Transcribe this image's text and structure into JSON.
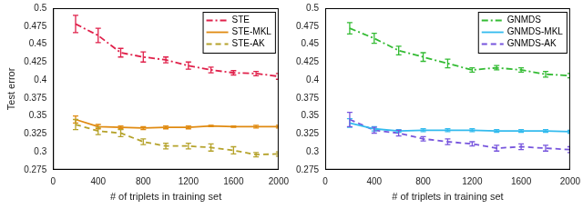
{
  "chart_data": [
    {
      "type": "line",
      "x_label": "# of triplets in training set",
      "y_label": "Test error",
      "x": [
        200,
        400,
        600,
        800,
        1000,
        1200,
        1400,
        1600,
        1800,
        2000
      ],
      "xlim": [
        0,
        2000
      ],
      "xticks": [
        0,
        400,
        800,
        1200,
        1600,
        2000
      ],
      "ylim": [
        0.275,
        0.5
      ],
      "yticks": [
        0.275,
        0.3,
        0.325,
        0.35,
        0.375,
        0.4,
        0.425,
        0.45,
        0.475,
        0.5
      ],
      "grid": false,
      "legend": "upper right",
      "series": [
        {
          "name": "STE",
          "color": "#e0204a",
          "line_style": "dashdot",
          "values": [
            0.478,
            0.462,
            0.438,
            0.432,
            0.428,
            0.42,
            0.414,
            0.41,
            0.409,
            0.405
          ],
          "errors": [
            0.012,
            0.01,
            0.006,
            0.007,
            0.004,
            0.005,
            0.004,
            0.003,
            0.003,
            0.004
          ]
        },
        {
          "name": "STE-MKL",
          "color": "#e08a10",
          "line_style": "solid",
          "values": [
            0.345,
            0.335,
            0.334,
            0.333,
            0.334,
            0.334,
            0.336,
            0.335,
            0.335,
            0.335
          ],
          "errors": [
            0.005,
            0.003,
            0.002,
            0.002,
            0.002,
            0.002,
            0.001,
            0.001,
            0.002,
            0.002
          ]
        },
        {
          "name": "STE-AK",
          "color": "#b5a22a",
          "line_style": "dashed",
          "values": [
            0.338,
            0.329,
            0.326,
            0.314,
            0.308,
            0.308,
            0.306,
            0.302,
            0.296,
            0.297
          ],
          "errors": [
            0.007,
            0.005,
            0.005,
            0.004,
            0.004,
            0.004,
            0.005,
            0.005,
            0.003,
            0.003
          ]
        }
      ]
    },
    {
      "type": "line",
      "x_label": "# of triplets in training set",
      "x": [
        200,
        400,
        600,
        800,
        1000,
        1200,
        1400,
        1600,
        1800,
        2000
      ],
      "xlim": [
        0,
        2000
      ],
      "xticks": [
        0,
        400,
        800,
        1200,
        1600,
        2000
      ],
      "ylim": [
        0.275,
        0.5
      ],
      "yticks": [
        0.275,
        0.3,
        0.325,
        0.35,
        0.375,
        0.4,
        0.425,
        0.45,
        0.475,
        0.5
      ],
      "grid": false,
      "legend": "upper right",
      "series": [
        {
          "name": "GNMDS",
          "color": "#33bb33",
          "line_style": "dashdot",
          "values": [
            0.472,
            0.458,
            0.441,
            0.432,
            0.423,
            0.414,
            0.417,
            0.414,
            0.408,
            0.406
          ],
          "errors": [
            0.008,
            0.007,
            0.006,
            0.006,
            0.006,
            0.003,
            0.003,
            0.003,
            0.004,
            0.003
          ]
        },
        {
          "name": "GNMDS-MKL",
          "color": "#33bbee",
          "line_style": "solid",
          "values": [
            0.34,
            0.332,
            0.329,
            0.33,
            0.33,
            0.33,
            0.329,
            0.329,
            0.329,
            0.328
          ],
          "errors": [
            0.006,
            0.003,
            0.002,
            0.002,
            0.002,
            0.002,
            0.002,
            0.002,
            0.002,
            0.002
          ]
        },
        {
          "name": "GNMDS-AK",
          "color": "#7755dd",
          "line_style": "dashed",
          "values": [
            0.345,
            0.33,
            0.326,
            0.318,
            0.314,
            0.311,
            0.305,
            0.307,
            0.305,
            0.303
          ],
          "errors": [
            0.01,
            0.004,
            0.004,
            0.003,
            0.004,
            0.003,
            0.004,
            0.004,
            0.004,
            0.004
          ]
        }
      ]
    }
  ]
}
